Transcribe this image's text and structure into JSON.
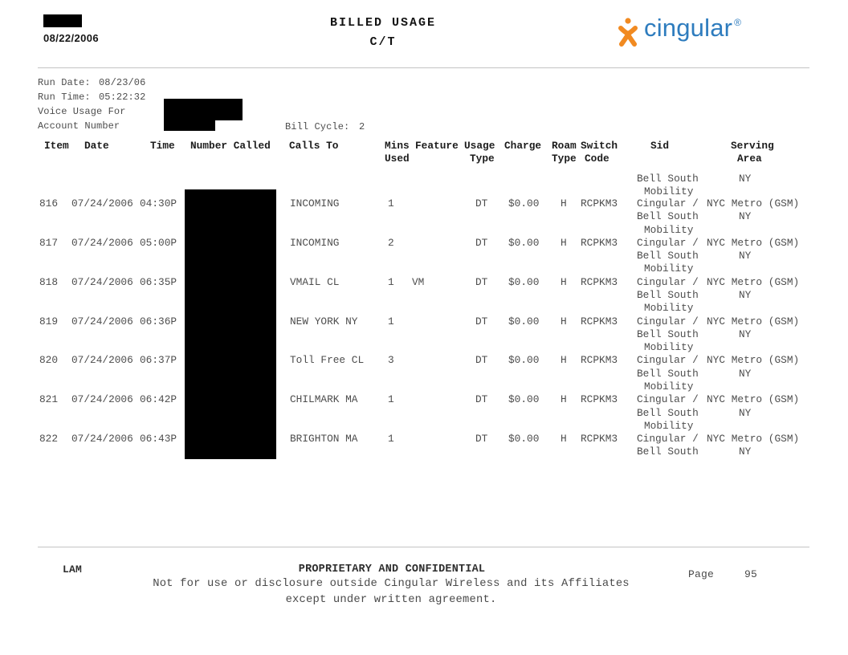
{
  "header": {
    "date": "08/22/2006",
    "title_line1": "BILLED USAGE",
    "title_line2": "C/T",
    "logo_text": "cingular",
    "logo_registered": "®",
    "logo_orange": "#F18A21",
    "logo_blue": "#2E7CBE"
  },
  "info": {
    "run_date_label": "Run Date:",
    "run_date_value": "08/23/06",
    "run_time_label": "Run Time:",
    "run_time_value": "05:22:32",
    "voice_usage_label": "Voice Usage For",
    "account_label": "Account Number",
    "bill_cycle_label": "Bill Cycle:",
    "bill_cycle_value": "2"
  },
  "table": {
    "headers": {
      "item": "Item",
      "date": "Date",
      "time": "Time",
      "number_called": "Number Called",
      "calls_to": "Calls To",
      "mins_l1": "Mins",
      "mins_l2": "Used",
      "feature": "Feature",
      "usage_l1": "Usage",
      "usage_l2": "Type",
      "charge": "Charge",
      "roam_l1": "Roam",
      "roam_l2": "Type",
      "switch_l1": "Switch",
      "switch_l2": "Code",
      "sid": "Sid",
      "serving_l1": "Serving",
      "serving_l2": "Area"
    },
    "continuation": {
      "sid2": "Bell South",
      "sid3": "Mobility",
      "serving2": "NY"
    },
    "rows": [
      {
        "item": "816",
        "date": "07/24/2006",
        "time": "04:30P",
        "calls_to": "INCOMING",
        "mins": "1",
        "feature": "",
        "usage_type": "DT",
        "charge": "$0.00",
        "roam": "H",
        "switch_code": "RCPKM3",
        "sid1": "Cingular /",
        "sid2": "Bell South",
        "sid3": "Mobility",
        "serving1": "NYC Metro (GSM)",
        "serving2": "NY"
      },
      {
        "item": "817",
        "date": "07/24/2006",
        "time": "05:00P",
        "calls_to": "INCOMING",
        "mins": "2",
        "feature": "",
        "usage_type": "DT",
        "charge": "$0.00",
        "roam": "H",
        "switch_code": "RCPKM3",
        "sid1": "Cingular /",
        "sid2": "Bell South",
        "sid3": "Mobility",
        "serving1": "NYC Metro (GSM)",
        "serving2": "NY"
      },
      {
        "item": "818",
        "date": "07/24/2006",
        "time": "06:35P",
        "calls_to": "VMAIL CL",
        "mins": "1",
        "feature": "VM",
        "usage_type": "DT",
        "charge": "$0.00",
        "roam": "H",
        "switch_code": "RCPKM3",
        "sid1": "Cingular /",
        "sid2": "Bell South",
        "sid3": "Mobility",
        "serving1": "NYC Metro (GSM)",
        "serving2": "NY"
      },
      {
        "item": "819",
        "date": "07/24/2006",
        "time": "06:36P",
        "calls_to": "NEW YORK NY",
        "mins": "1",
        "feature": "",
        "usage_type": "DT",
        "charge": "$0.00",
        "roam": "H",
        "switch_code": "RCPKM3",
        "sid1": "Cingular /",
        "sid2": "Bell South",
        "sid3": "Mobility",
        "serving1": "NYC Metro (GSM)",
        "serving2": "NY"
      },
      {
        "item": "820",
        "date": "07/24/2006",
        "time": "06:37P",
        "calls_to": "Toll Free CL",
        "mins": "3",
        "feature": "",
        "usage_type": "DT",
        "charge": "$0.00",
        "roam": "H",
        "switch_code": "RCPKM3",
        "sid1": "Cingular /",
        "sid2": "Bell South",
        "sid3": "Mobility",
        "serving1": "NYC Metro (GSM)",
        "serving2": "NY"
      },
      {
        "item": "821",
        "date": "07/24/2006",
        "time": "06:42P",
        "calls_to": "CHILMARK MA",
        "mins": "1",
        "feature": "",
        "usage_type": "DT",
        "charge": "$0.00",
        "roam": "H",
        "switch_code": "RCPKM3",
        "sid1": "Cingular /",
        "sid2": "Bell South",
        "sid3": "Mobility",
        "serving1": "NYC Metro (GSM)",
        "serving2": "NY"
      },
      {
        "item": "822",
        "date": "07/24/2006",
        "time": "06:43P",
        "calls_to": "BRIGHTON MA",
        "mins": "1",
        "feature": "",
        "usage_type": "DT",
        "charge": "$0.00",
        "roam": "H",
        "switch_code": "RCPKM3",
        "sid1": "Cingular /",
        "sid2": "Bell South",
        "sid3": "",
        "serving1": "NYC Metro (GSM)",
        "serving2": "NY"
      }
    ]
  },
  "footer": {
    "initials": "LAM",
    "confidential_line1": "PROPRIETARY AND CONFIDENTIAL",
    "confidential_line2": "Not for use or disclosure outside Cingular Wireless and its Affiliates",
    "confidential_line3": "except under written agreement.",
    "page_label": "Page",
    "page_number": "95"
  }
}
